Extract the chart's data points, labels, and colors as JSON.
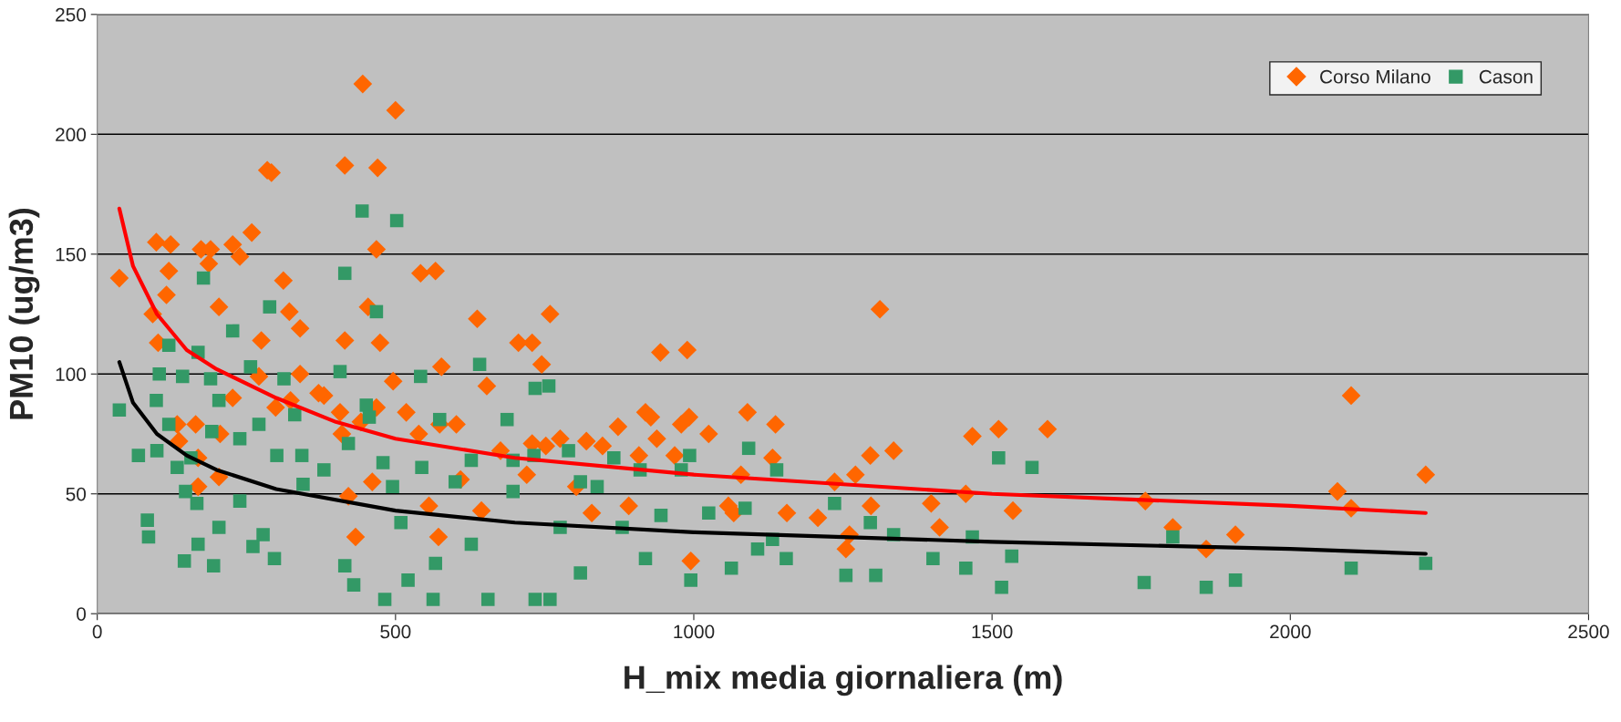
{
  "chart_data": {
    "type": "scatter",
    "xlabel": "H_mix media giornaliera (m)",
    "ylabel": "PM10 (ug/m3)",
    "xlim": [
      0,
      2500
    ],
    "xticks": [
      0,
      500,
      1000,
      1500,
      2000,
      2500
    ],
    "ylim": [
      0,
      250
    ],
    "yticks": [
      0,
      50,
      100,
      150,
      200,
      250
    ],
    "grid": "y",
    "legend": "top right",
    "series": [
      {
        "name": "Corso Milano",
        "color": "#ff6600",
        "marker": "diamond",
        "x": [
          37,
          99,
          123,
          120,
          116,
          93,
          102,
          174,
          190,
          187,
          204,
          227,
          239,
          259,
          285,
          292,
          275,
          312,
          322,
          340,
          380,
          415,
          415,
          445,
          500,
          470,
          468,
          454,
          474,
          542,
          567,
          577,
          637,
          759,
          706,
          729,
          745,
          989,
          944,
          1312,
          2102,
          2079,
          2102,
          2227,
          1757,
          1803,
          1859,
          1908,
          1593,
          1511,
          1467,
          1535,
          1456,
          1398,
          1412,
          1335,
          1296,
          1271,
          1236,
          1255,
          1137,
          1090,
          1132,
          1156,
          1079,
          1067,
          1025,
          992,
          979,
          919,
          928,
          938,
          908,
          968,
          995,
          873,
          847,
          820,
          776,
          752,
          729,
          720,
          676,
          653,
          602,
          574,
          539,
          496,
          518,
          468,
          442,
          410,
          371,
          407,
          340,
          324,
          299,
          271,
          227,
          206,
          165,
          134,
          137,
          169,
          204,
          169,
          421,
          461,
          433,
          556,
          572,
          644,
          609,
          803,
          891,
          829,
          1058,
          1208,
          1261,
          1297
        ],
        "values": [
          140,
          155,
          154,
          143,
          133,
          125,
          113,
          152,
          152,
          146,
          128,
          154,
          149,
          159,
          185,
          184,
          114,
          139,
          126,
          119,
          91,
          114,
          187,
          221,
          210,
          186,
          152,
          128,
          113,
          142,
          143,
          103,
          123,
          125,
          113,
          113,
          104,
          110,
          109,
          127,
          91,
          51,
          44,
          58,
          47,
          36,
          27,
          33,
          77,
          77,
          74,
          43,
          50,
          46,
          36,
          68,
          66,
          58,
          55,
          27,
          79,
          84,
          65,
          42,
          58,
          42,
          75,
          82,
          79,
          84,
          82,
          73,
          66,
          66,
          22,
          78,
          70,
          72,
          73,
          70,
          71,
          58,
          68,
          95,
          79,
          79,
          75,
          97,
          84,
          86,
          80,
          75,
          92,
          84,
          100,
          89,
          86,
          99,
          90,
          75,
          79,
          79,
          72,
          65,
          57,
          53,
          49,
          55,
          32,
          45,
          32,
          43,
          56,
          53,
          45,
          42,
          45,
          40,
          33,
          45
        ]
      },
      {
        "name": "Cason",
        "color": "#339966",
        "marker": "square",
        "x": [
          37,
          69,
          84,
          86,
          99,
          104,
          100,
          120,
          120,
          143,
          134,
          148,
          146,
          157,
          169,
          178,
          167,
          169,
          192,
          190,
          195,
          204,
          204,
          227,
          239,
          239,
          257,
          261,
          271,
          278,
          289,
          301,
          297,
          313,
          331,
          343,
          345,
          380,
          407,
          415,
          421,
          415,
          430,
          444,
          451,
          456,
          468,
          479,
          495,
          482,
          502,
          509,
          521,
          542,
          544,
          574,
          567,
          563,
          600,
          627,
          641,
          627,
          655,
          687,
          697,
          697,
          734,
          732,
          734,
          759,
          757,
          776,
          790,
          810,
          810,
          838,
          866,
          880,
          910,
          919,
          945,
          979,
          993,
          995,
          1025,
          1063,
          1086,
          1092,
          1107,
          1132,
          1139,
          1155,
          1236,
          1255,
          1296,
          1305,
          1335,
          1401,
          1456,
          1467,
          1511,
          1516,
          1533,
          1567,
          1755,
          1803,
          1859,
          1908,
          2102,
          2227
        ],
        "values": [
          85,
          66,
          39,
          32,
          89,
          100,
          68,
          112,
          79,
          99,
          61,
          51,
          22,
          65,
          109,
          140,
          46,
          29,
          76,
          98,
          20,
          89,
          36,
          118,
          73,
          47,
          103,
          28,
          79,
          33,
          128,
          66,
          23,
          98,
          83,
          66,
          54,
          60,
          101,
          142,
          71,
          20,
          12,
          168,
          87,
          82,
          126,
          63,
          53,
          6,
          164,
          38,
          14,
          99,
          61,
          81,
          21,
          6,
          55,
          64,
          104,
          29,
          6,
          81,
          64,
          51,
          94,
          66,
          6,
          6,
          95,
          36,
          68,
          55,
          17,
          53,
          65,
          36,
          60,
          23,
          41,
          60,
          66,
          14,
          42,
          19,
          44,
          69,
          27,
          31,
          60,
          23,
          46,
          16,
          38,
          16,
          33,
          23,
          19,
          32,
          65,
          11,
          24,
          61,
          13,
          32,
          11,
          14,
          19,
          21
        ]
      },
      {
        "type": "line",
        "color": "#ff0000",
        "x": [
          37,
          60,
          100,
          150,
          200,
          300,
          400,
          500,
          700,
          1000,
          1500,
          2000,
          2227
        ],
        "values": [
          169,
          145,
          125,
          110,
          102,
          90,
          80,
          73,
          65,
          58,
          50,
          45,
          42
        ]
      },
      {
        "type": "line",
        "color": "#000000",
        "x": [
          37,
          60,
          100,
          150,
          200,
          300,
          500,
          700,
          1000,
          1500,
          2000,
          2227
        ],
        "values": [
          105,
          88,
          75,
          66,
          60,
          52,
          43,
          38,
          34,
          30,
          27,
          25
        ]
      }
    ]
  }
}
